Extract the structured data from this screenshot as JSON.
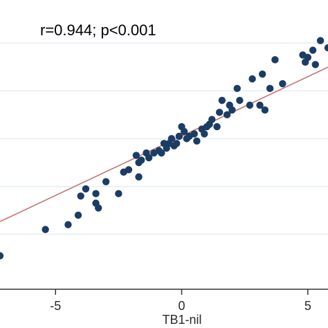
{
  "chart_data": {
    "type": "scatter",
    "annotation": "r=0.944; p<0.001",
    "xlabel": "TB1-nil",
    "ylabel": "",
    "x_ticks": [
      -5,
      0,
      5
    ],
    "x_tick_labels": [
      "-5",
      "0",
      "5"
    ],
    "y_gridlines": [
      -4,
      -2,
      0,
      2,
      4
    ],
    "xlim": [
      -7.2,
      5.8
    ],
    "ylim": [
      -6.3,
      5.8
    ],
    "grid": true,
    "legend": "none",
    "colors": {
      "points": "#1c3d63",
      "fit_line": "#c26b6b",
      "grid": "#e4edf4",
      "axis": "#333333"
    },
    "fit_line": {
      "x": [
        -7.2,
        5.8
      ],
      "y": [
        -3.47,
        2.99
      ]
    },
    "points": [
      {
        "x": 5.5,
        "y": 4.1
      },
      {
        "x": 5.8,
        "y": 3.8
      },
      {
        "x": 5.2,
        "y": 3.7
      },
      {
        "x": 5.0,
        "y": 3.4
      },
      {
        "x": 4.8,
        "y": 3.5
      },
      {
        "x": 4.9,
        "y": 3.2
      },
      {
        "x": 5.3,
        "y": 3.1
      },
      {
        "x": 3.7,
        "y": 3.3
      },
      {
        "x": 3.2,
        "y": 2.7
      },
      {
        "x": 4.0,
        "y": 2.3
      },
      {
        "x": 3.5,
        "y": 2.1
      },
      {
        "x": 2.8,
        "y": 2.5
      },
      {
        "x": 2.2,
        "y": 2.1
      },
      {
        "x": 2.3,
        "y": 1.6
      },
      {
        "x": 2.7,
        "y": 1.4
      },
      {
        "x": 3.1,
        "y": 1.4
      },
      {
        "x": 3.3,
        "y": 1.2
      },
      {
        "x": 1.6,
        "y": 1.6
      },
      {
        "x": 1.9,
        "y": 1.4
      },
      {
        "x": 2.0,
        "y": 1.2
      },
      {
        "x": 1.8,
        "y": 1.0
      },
      {
        "x": 1.5,
        "y": 1.1
      },
      {
        "x": 1.2,
        "y": 0.8
      },
      {
        "x": 1.4,
        "y": 0.5
      },
      {
        "x": 1.0,
        "y": 0.5
      },
      {
        "x": 1.1,
        "y": 0.6
      },
      {
        "x": 0.8,
        "y": 0.4
      },
      {
        "x": 0.9,
        "y": 0.2
      },
      {
        "x": 0.5,
        "y": 0.2
      },
      {
        "x": 0.6,
        "y": -0.1
      },
      {
        "x": 0.3,
        "y": 0.1
      },
      {
        "x": 0.1,
        "y": 0.3
      },
      {
        "x": 0.0,
        "y": 0.5
      },
      {
        "x": 0.2,
        "y": 0.0
      },
      {
        "x": -0.1,
        "y": 0.1
      },
      {
        "x": -0.2,
        "y": -0.2
      },
      {
        "x": -0.4,
        "y": 0.0
      },
      {
        "x": -0.3,
        "y": -0.3
      },
      {
        "x": -0.5,
        "y": -0.2
      },
      {
        "x": -0.6,
        "y": -0.4
      },
      {
        "x": -0.7,
        "y": -0.2
      },
      {
        "x": -0.9,
        "y": -0.5
      },
      {
        "x": -0.8,
        "y": -0.6
      },
      {
        "x": -1.1,
        "y": -0.6
      },
      {
        "x": -1.3,
        "y": -0.8
      },
      {
        "x": -1.4,
        "y": -0.6
      },
      {
        "x": -1.6,
        "y": -0.9
      },
      {
        "x": -1.8,
        "y": -0.7
      },
      {
        "x": -1.7,
        "y": -1.0
      },
      {
        "x": -2.1,
        "y": -1.3
      },
      {
        "x": -2.3,
        "y": -1.4
      },
      {
        "x": -1.7,
        "y": -1.6
      },
      {
        "x": -2.5,
        "y": -2.3
      },
      {
        "x": -3.0,
        "y": -1.8
      },
      {
        "x": -3.4,
        "y": -2.3
      },
      {
        "x": -3.8,
        "y": -2.1
      },
      {
        "x": -4.0,
        "y": -2.4
      },
      {
        "x": -3.4,
        "y": -2.7
      },
      {
        "x": -3.3,
        "y": -2.9
      },
      {
        "x": -4.1,
        "y": -3.2
      },
      {
        "x": -4.5,
        "y": -3.6
      },
      {
        "x": -5.4,
        "y": -3.8
      },
      {
        "x": -7.2,
        "y": -4.9
      }
    ]
  }
}
